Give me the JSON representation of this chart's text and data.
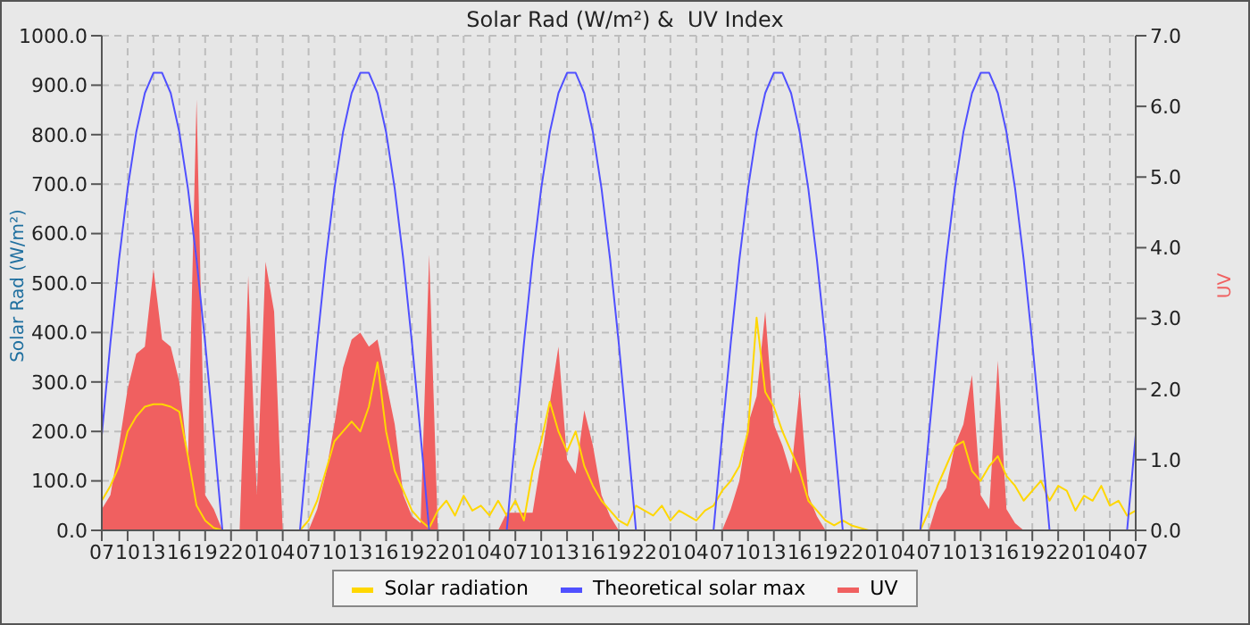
{
  "chart_data": {
    "type": "line",
    "title": "Solar Rad (W/m²) &  UV Index",
    "ylabel": "Solar Rad (W/m²)",
    "y2label": "UV",
    "categories": [
      "07",
      null,
      null,
      "10",
      null,
      null,
      "13",
      null,
      null,
      "16",
      null,
      null,
      "19",
      null,
      null,
      "22",
      null,
      null,
      "01",
      null,
      null,
      "04",
      null,
      null,
      "07",
      null,
      null,
      "10",
      null,
      null,
      "13",
      null,
      null,
      "16",
      null,
      null,
      "19",
      null,
      null,
      "22",
      null,
      null,
      "01",
      null,
      null,
      "04",
      null,
      null,
      "07",
      null,
      null,
      "10",
      null,
      null,
      "13",
      null,
      null,
      "16",
      null,
      null,
      "19",
      null,
      null,
      "22",
      null,
      null,
      "01",
      null,
      null,
      "04",
      null,
      null,
      "07",
      null,
      null,
      "10",
      null,
      null,
      "13",
      null,
      null,
      "16",
      null,
      null,
      "19",
      null,
      null,
      "22",
      null,
      null,
      "01",
      null,
      null,
      "04",
      null,
      null,
      "07",
      null,
      null,
      "10",
      null,
      null,
      "13",
      null,
      null,
      "16",
      null,
      null,
      "19",
      null,
      null,
      "22",
      null,
      null,
      "01",
      null,
      null,
      "04",
      null,
      null,
      "07"
    ],
    "ylim": [
      0,
      1000
    ],
    "yticks": [
      {
        "value": 0,
        "label": "0.0"
      },
      {
        "value": 100,
        "label": "100.0"
      },
      {
        "value": 200,
        "label": "200.0"
      },
      {
        "value": 300,
        "label": "300.0"
      },
      {
        "value": 400,
        "label": "400.0"
      },
      {
        "value": 500,
        "label": "500.0"
      },
      {
        "value": 600,
        "label": "600.0"
      },
      {
        "value": 700,
        "label": "700.0"
      },
      {
        "value": 800,
        "label": "800.0"
      },
      {
        "value": 900,
        "label": "900.0"
      },
      {
        "value": 1000,
        "label": "1000.0"
      }
    ],
    "y2lim": [
      0,
      7
    ],
    "y2ticks": [
      {
        "value": 0,
        "label": "0.0"
      },
      {
        "value": 1,
        "label": "1.0"
      },
      {
        "value": 2,
        "label": "2.0"
      },
      {
        "value": 3,
        "label": "3.0"
      },
      {
        "value": 4,
        "label": "4.0"
      },
      {
        "value": 5,
        "label": "5.0"
      },
      {
        "value": 6,
        "label": "6.0"
      },
      {
        "value": 7,
        "label": "7.0"
      }
    ],
    "grid": true,
    "legend": "bottom",
    "marker": "none",
    "line_style": "solid",
    "series": [
      {
        "name": "Solar radiation",
        "color": "#ffd700",
        "values": [
          60,
          90,
          130,
          200,
          230,
          250,
          255,
          255,
          250,
          240,
          150,
          50,
          20,
          5,
          0,
          0,
          0,
          0,
          0,
          0,
          0,
          0,
          0,
          0,
          20,
          60,
          120,
          180,
          200,
          220,
          200,
          250,
          340,
          200,
          120,
          80,
          40,
          20,
          5,
          40,
          60,
          30,
          70,
          40,
          50,
          30,
          60,
          30,
          60,
          20,
          120,
          180,
          260,
          200,
          160,
          200,
          130,
          90,
          60,
          40,
          20,
          10,
          50,
          40,
          30,
          50,
          20,
          40,
          30,
          20,
          40,
          50,
          80,
          100,
          130,
          200,
          430,
          280,
          250,
          200,
          160,
          120,
          60,
          40,
          20,
          10,
          20,
          10,
          5,
          0,
          0,
          0,
          0,
          0,
          0,
          0,
          40,
          90,
          130,
          170,
          180,
          120,
          100,
          130,
          150,
          110,
          90,
          60,
          80,
          100,
          60,
          90,
          80,
          40,
          70,
          60,
          90,
          50,
          60,
          30,
          40
        ]
      },
      {
        "name": "Theoretical solar max",
        "color": "#5050ff",
        "values": [
          193,
          379,
          547,
          691,
          805,
          884,
          925,
          925,
          884,
          805,
          691,
          547,
          379,
          193,
          0,
          0,
          0,
          0,
          0,
          0,
          0,
          0,
          0,
          0,
          193,
          379,
          547,
          691,
          805,
          884,
          925,
          925,
          884,
          805,
          691,
          547,
          379,
          193,
          0,
          0,
          0,
          0,
          0,
          0,
          0,
          0,
          0,
          0,
          193,
          379,
          547,
          691,
          805,
          884,
          925,
          925,
          884,
          805,
          691,
          547,
          379,
          193,
          0,
          0,
          0,
          0,
          0,
          0,
          0,
          0,
          0,
          0,
          193,
          379,
          547,
          691,
          805,
          884,
          925,
          925,
          884,
          805,
          691,
          547,
          379,
          193,
          0,
          0,
          0,
          0,
          0,
          0,
          0,
          0,
          0,
          0,
          193,
          379,
          547,
          691,
          805,
          884,
          925,
          925,
          884,
          805,
          691,
          547,
          379,
          193,
          0,
          0,
          0,
          0,
          0,
          0,
          0,
          0,
          0,
          0,
          193
        ]
      },
      {
        "name": "UV",
        "type": "area",
        "axis": "y2",
        "color": "#f06060",
        "values": [
          0.3,
          0.5,
          1.2,
          2.0,
          2.5,
          2.6,
          3.7,
          2.7,
          2.6,
          2.1,
          1.0,
          6.1,
          0.5,
          0.3,
          0,
          0,
          0,
          3.6,
          0.5,
          3.8,
          3.1,
          0,
          0,
          0,
          0,
          0.3,
          0.8,
          1.5,
          2.3,
          2.7,
          2.8,
          2.6,
          2.7,
          2.1,
          1.5,
          0.5,
          0.2,
          0.1,
          3.9,
          0,
          0,
          0,
          0,
          0,
          0,
          0,
          0,
          0.25,
          0.25,
          0.25,
          0.25,
          1.0,
          1.8,
          2.6,
          1.0,
          0.8,
          1.7,
          1.2,
          0.5,
          0.2,
          0,
          0,
          0,
          0,
          0,
          0,
          0,
          0,
          0,
          0,
          0,
          0,
          0,
          0.3,
          0.7,
          1.5,
          1.9,
          3.1,
          1.5,
          1.2,
          0.8,
          2.0,
          0.5,
          0.2,
          0,
          0,
          0,
          0,
          0,
          0,
          0,
          0,
          0,
          0,
          0,
          0,
          0,
          0.4,
          0.6,
          1.2,
          1.5,
          2.2,
          0.5,
          0.3,
          2.4,
          0.3,
          0.1,
          0,
          0,
          0,
          0,
          0,
          0,
          0,
          0,
          0,
          0,
          0,
          0,
          0,
          0
        ]
      }
    ]
  }
}
